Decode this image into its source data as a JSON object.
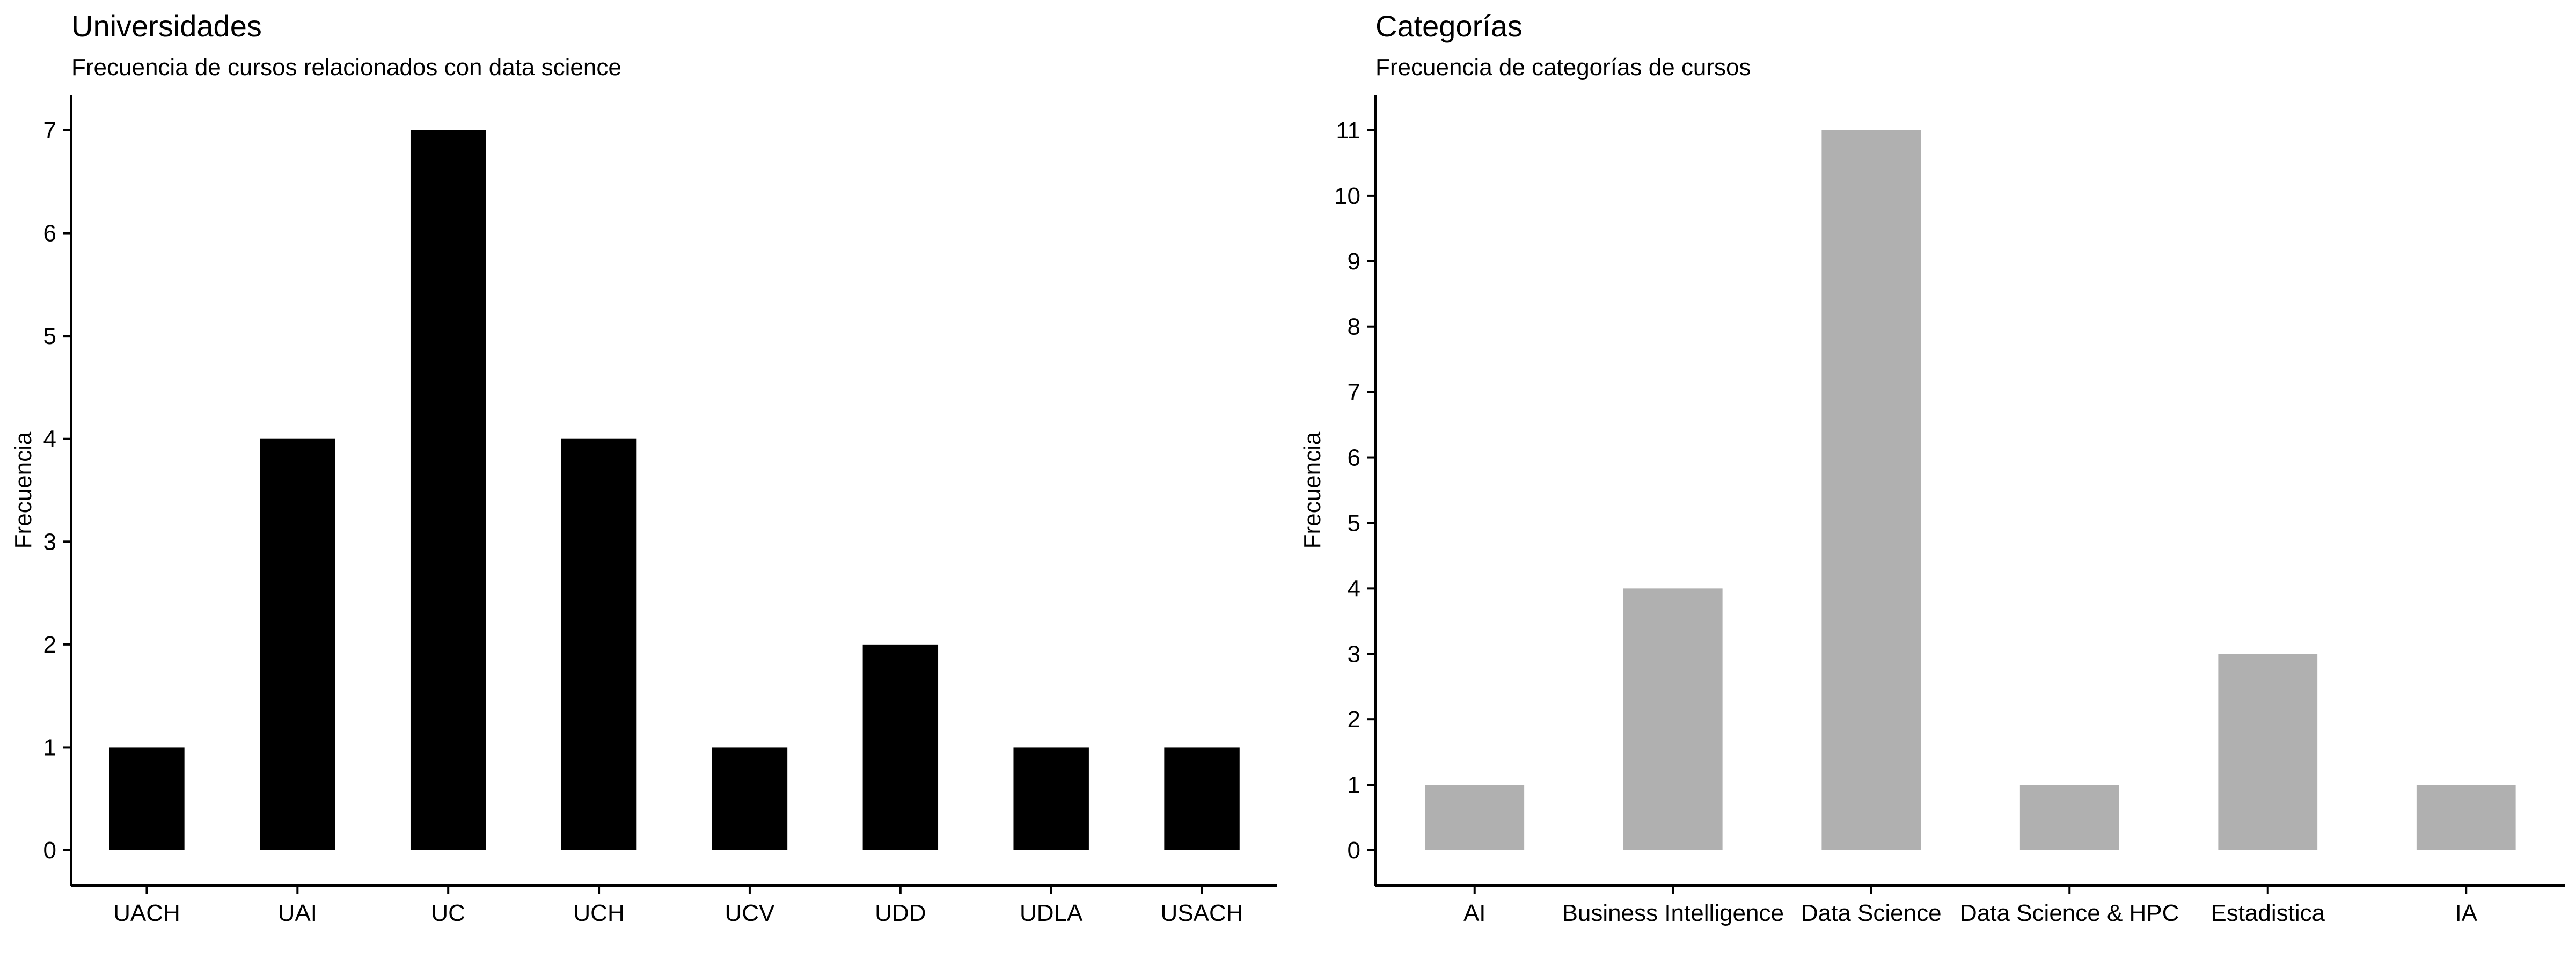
{
  "chart_data": [
    {
      "type": "bar",
      "title": "Universidades",
      "subtitle": "Frecuencia de cursos relacionados con data science",
      "xlabel": "",
      "ylabel": "Frecuencia",
      "categories": [
        "UACH",
        "UAI",
        "UC",
        "UCH",
        "UCV",
        "UDD",
        "UDLA",
        "USACH"
      ],
      "values": [
        1,
        4,
        7,
        4,
        1,
        2,
        1,
        1
      ],
      "ylim": [
        0,
        7
      ],
      "yticks": [
        0,
        1,
        2,
        3,
        4,
        5,
        6,
        7
      ],
      "bar_color": "#000000",
      "grid": false,
      "legend": "none"
    },
    {
      "type": "bar",
      "title": "Categorías",
      "subtitle": "Frecuencia de categorías de cursos",
      "xlabel": "",
      "ylabel": "Frecuencia",
      "categories": [
        "AI",
        "Business Intelligence",
        "Data Science",
        "Data Science & HPC",
        "Estadistica",
        "IA"
      ],
      "values": [
        1,
        4,
        11,
        1,
        3,
        1
      ],
      "ylim": [
        0,
        11
      ],
      "yticks": [
        0,
        1,
        2,
        3,
        4,
        5,
        6,
        7,
        8,
        9,
        10,
        11
      ],
      "bar_color": "#b0b0b0",
      "grid": false,
      "legend": "none"
    }
  ]
}
